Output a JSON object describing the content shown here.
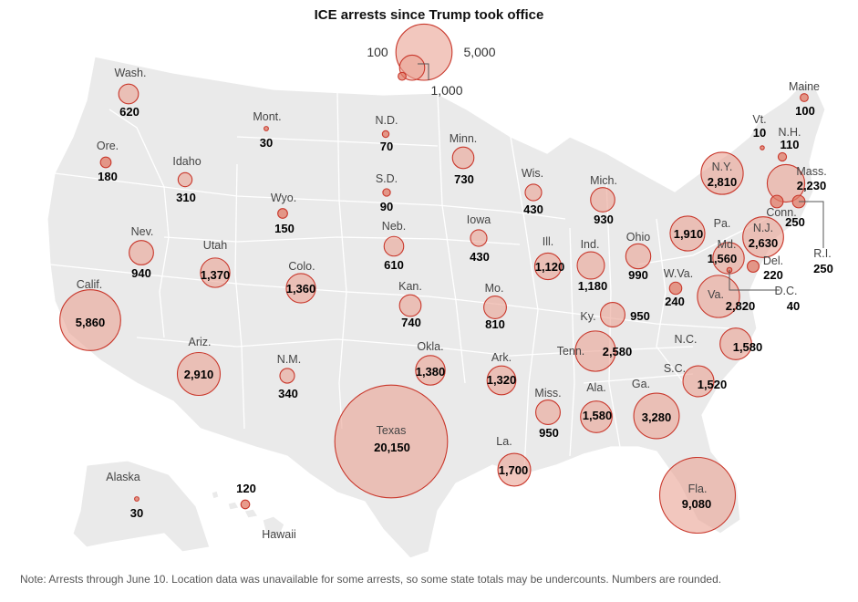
{
  "title": "ICE arrests since Trump took office",
  "legend": {
    "labels": [
      "100",
      "1,000",
      "5,000"
    ],
    "values": [
      100,
      1000,
      5000
    ]
  },
  "note": "Note: Arrests through June 10. Location data was unavailable for some arrests, so some state totals may be undercounts. Numbers are rounded.",
  "colors": {
    "bubble_fill": "#e9a292",
    "bubble_stroke": "#c9372b",
    "land": "#eaeaea"
  },
  "states": [
    {
      "name": "Wash.",
      "value": 620,
      "label": "620"
    },
    {
      "name": "Ore.",
      "value": 180,
      "label": "180"
    },
    {
      "name": "Calif.",
      "value": 5860,
      "label": "5,860"
    },
    {
      "name": "Idaho",
      "value": 310,
      "label": "310"
    },
    {
      "name": "Nev.",
      "value": 940,
      "label": "940"
    },
    {
      "name": "Mont.",
      "value": 30,
      "label": "30"
    },
    {
      "name": "Wyo.",
      "value": 150,
      "label": "150"
    },
    {
      "name": "Utah",
      "value": 1370,
      "label": "1,370"
    },
    {
      "name": "Ariz.",
      "value": 2910,
      "label": "2,910"
    },
    {
      "name": "Colo.",
      "value": 1360,
      "label": "1,360"
    },
    {
      "name": "N.M.",
      "value": 340,
      "label": "340"
    },
    {
      "name": "N.D.",
      "value": 70,
      "label": "70"
    },
    {
      "name": "S.D.",
      "value": 90,
      "label": "90"
    },
    {
      "name": "Neb.",
      "value": 610,
      "label": "610"
    },
    {
      "name": "Kan.",
      "value": 740,
      "label": "740"
    },
    {
      "name": "Okla.",
      "value": 1380,
      "label": "1,380"
    },
    {
      "name": "Texas",
      "value": 20150,
      "label": "20,150"
    },
    {
      "name": "Minn.",
      "value": 730,
      "label": "730"
    },
    {
      "name": "Iowa",
      "value": 430,
      "label": "430"
    },
    {
      "name": "Mo.",
      "value": 810,
      "label": "810"
    },
    {
      "name": "Ark.",
      "value": 1320,
      "label": "1,320"
    },
    {
      "name": "La.",
      "value": 1700,
      "label": "1,700"
    },
    {
      "name": "Wis.",
      "value": 430,
      "label": "430"
    },
    {
      "name": "Ill.",
      "value": 1120,
      "label": "1,120"
    },
    {
      "name": "Mich.",
      "value": 930,
      "label": "930"
    },
    {
      "name": "Ind.",
      "value": 1180,
      "label": "1,180"
    },
    {
      "name": "Ohio",
      "value": 990,
      "label": "990"
    },
    {
      "name": "Ky.",
      "value": 950,
      "label": "950"
    },
    {
      "name": "Tenn.",
      "value": 2580,
      "label": "2,580"
    },
    {
      "name": "Miss.",
      "value": 950,
      "label": "950"
    },
    {
      "name": "Ala.",
      "value": 1580,
      "label": "1,580"
    },
    {
      "name": "Ga.",
      "value": 3280,
      "label": "3,280"
    },
    {
      "name": "Fla.",
      "value": 9080,
      "label": "9,080"
    },
    {
      "name": "S.C.",
      "value": 1520,
      "label": "1,520"
    },
    {
      "name": "N.C.",
      "value": 1580,
      "label": "1,580"
    },
    {
      "name": "Va.",
      "value": 2820,
      "label": "2,820"
    },
    {
      "name": "W.Va.",
      "value": 240,
      "label": "240"
    },
    {
      "name": "Md.",
      "value": 1560,
      "label": "1,560"
    },
    {
      "name": "D.C.",
      "value": 40,
      "label": "40"
    },
    {
      "name": "Del.",
      "value": 220,
      "label": "220"
    },
    {
      "name": "N.J.",
      "value": 2630,
      "label": "2,630"
    },
    {
      "name": "Pa.",
      "value": 1910,
      "label": "1,910"
    },
    {
      "name": "N.Y.",
      "value": 2810,
      "label": "2,810"
    },
    {
      "name": "Conn.",
      "value": 250,
      "label": "250"
    },
    {
      "name": "R.I.",
      "value": 250,
      "label": "250"
    },
    {
      "name": "Mass.",
      "value": 2230,
      "label": "2,230"
    },
    {
      "name": "Vt.",
      "value": 10,
      "label": "10"
    },
    {
      "name": "N.H.",
      "value": 110,
      "label": "110"
    },
    {
      "name": "Maine",
      "value": 100,
      "label": "100"
    },
    {
      "name": "Alaska",
      "value": 30,
      "label": "30"
    },
    {
      "name": "Hawaii",
      "value": 120,
      "label": "120"
    }
  ]
}
